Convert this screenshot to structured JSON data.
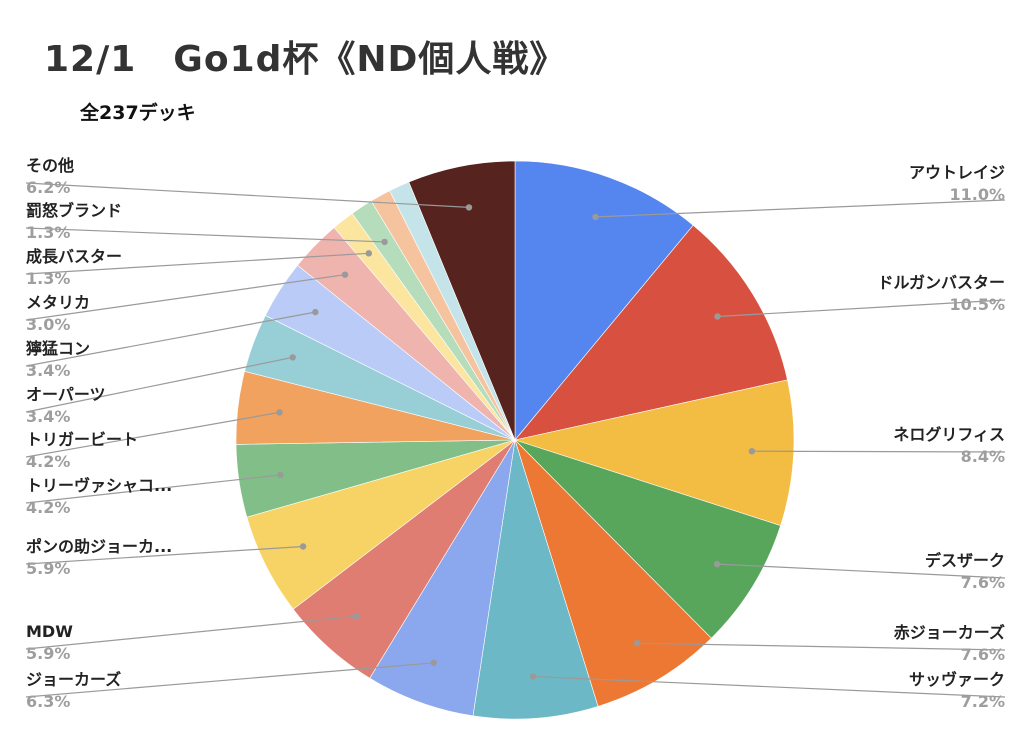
{
  "title": "12/1　Go1d杯《ND個人戦》",
  "subtitle": "全237デッキ",
  "chart_data": {
    "type": "pie",
    "title": "12/1　Go1d杯《ND個人戦》",
    "subtitle": "全237デッキ",
    "start_angle_deg": 0,
    "direction": "clockwise",
    "slices": [
      {
        "label": "アウトレイジ",
        "value": 11.0,
        "pct": "11.0%",
        "color": "#5585ee"
      },
      {
        "label": "ドルガンバスター",
        "value": 10.5,
        "pct": "10.5%",
        "color": "#d85140"
      },
      {
        "label": "ネログリフィス",
        "value": 8.4,
        "pct": "8.4%",
        "color": "#f2bd42"
      },
      {
        "label": "デスザーク",
        "value": 7.6,
        "pct": "7.6%",
        "color": "#58a65c"
      },
      {
        "label": "赤ジョーカーズ",
        "value": 7.6,
        "pct": "7.6%",
        "color": "#ed7833"
      },
      {
        "label": "サッヴァーク",
        "value": 7.2,
        "pct": "7.2%",
        "color": "#6cb8c6"
      },
      {
        "label": "ジョーカーズ",
        "value": 6.3,
        "pct": "6.3%",
        "color": "#8ba7ee"
      },
      {
        "label": "MDW",
        "value": 5.9,
        "pct": "5.9%",
        "color": "#e07d73"
      },
      {
        "label": "ポンの助ジョーカ...",
        "value": 5.9,
        "pct": "5.9%",
        "color": "#f6d364"
      },
      {
        "label": "トリーヴァシャコ...",
        "value": 4.2,
        "pct": "4.2%",
        "color": "#82bf88"
      },
      {
        "label": "トリガービート",
        "value": 4.2,
        "pct": "4.2%",
        "color": "#f1a25f"
      },
      {
        "label": "オーパーツ",
        "value": 3.4,
        "pct": "3.4%",
        "color": "#98cfd7"
      },
      {
        "label": "獰猛コン",
        "value": 3.4,
        "pct": "3.4%",
        "color": "#b9cbf6"
      },
      {
        "label": "メタリカ",
        "value": 3.0,
        "pct": "3.0%",
        "color": "#efb4ad"
      },
      {
        "label": "成長バスター",
        "value": 1.3,
        "pct": "1.3%",
        "color": "#fbe59f"
      },
      {
        "label": "罰怒ブランド",
        "value": 1.3,
        "pct": "1.3%",
        "color": "#b5dcbb"
      },
      {
        "label": "",
        "value": 1.2,
        "pct": "",
        "color": "#f5c39d"
      },
      {
        "label": "",
        "value": 1.2,
        "pct": "",
        "color": "#c4e4ea"
      },
      {
        "label": "その他",
        "value": 6.2,
        "pct": "6.2%",
        "color": "#56231f"
      }
    ]
  }
}
